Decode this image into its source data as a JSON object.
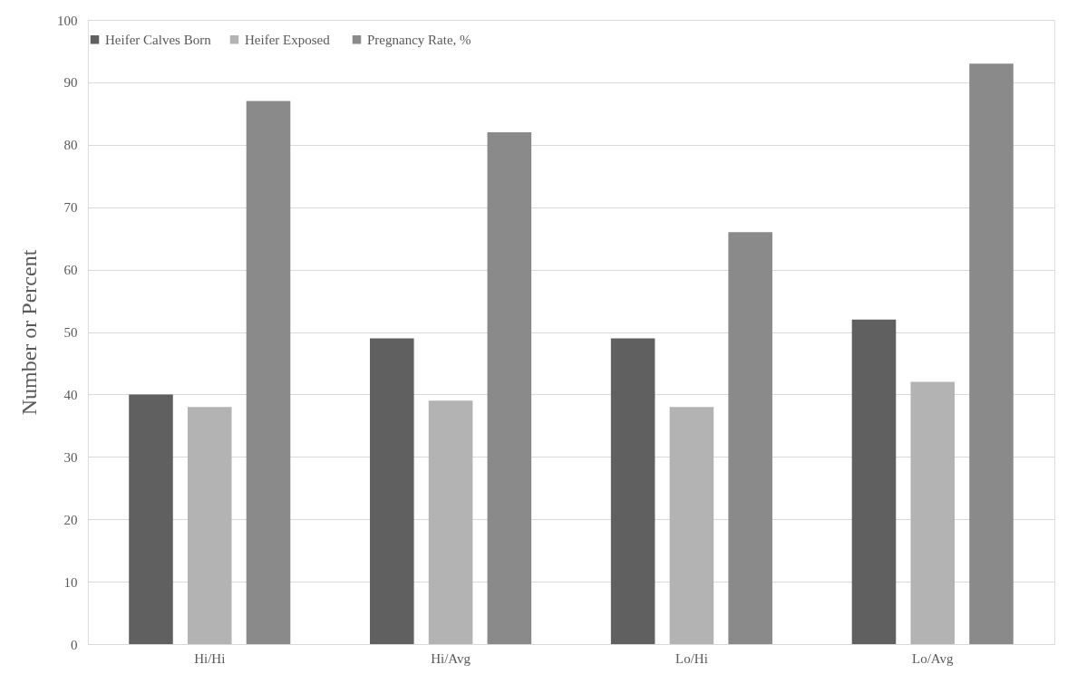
{
  "chart_data": {
    "type": "bar",
    "ylabel": "Number or Percent",
    "categories": [
      "Hi/Hi",
      "Hi/Avg",
      "Lo/Hi",
      "Lo/Avg"
    ],
    "series": [
      {
        "name": "Heifer Calves Born",
        "color": "#606060",
        "values": [
          40,
          49,
          49,
          52
        ]
      },
      {
        "name": "Heifer  Exposed",
        "color": "#b3b3b3",
        "values": [
          38,
          39,
          38,
          42
        ]
      },
      {
        "name": "Pregnancy Rate, %",
        "color": "#8a8a8a",
        "values": [
          87,
          82,
          66,
          93
        ]
      }
    ],
    "ylim": [
      0,
      100
    ],
    "yticks": [
      0,
      10,
      20,
      30,
      40,
      50,
      60,
      70,
      80,
      90,
      100
    ],
    "grid": "y",
    "legend": "top"
  }
}
